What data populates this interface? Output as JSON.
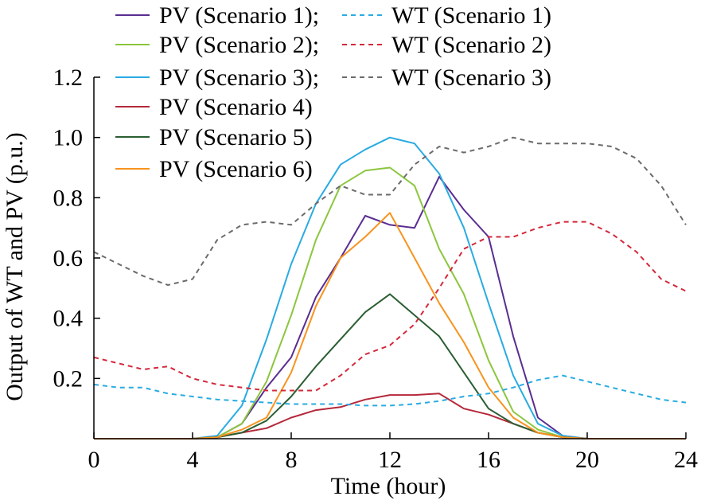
{
  "chart_data": {
    "type": "line",
    "xlabel": "Time (hour)",
    "ylabel": "Output of WT and PV (p.u.)",
    "xlim": [
      0,
      24
    ],
    "ylim": [
      0,
      1.2
    ],
    "xticks": [
      0,
      4,
      8,
      12,
      16,
      20,
      24
    ],
    "yticks": [
      0.2,
      0.4,
      0.6,
      0.8,
      1.0,
      1.2
    ],
    "xtick_labels": [
      "0",
      "4",
      "8",
      "12",
      "16",
      "20",
      "24"
    ],
    "ytick_labels": [
      "0.2",
      "0.4",
      "0.6",
      "0.8",
      "1.0",
      "1.2"
    ],
    "grid": false,
    "legend_position": "top",
    "x": [
      0,
      1,
      2,
      3,
      4,
      5,
      6,
      7,
      8,
      9,
      10,
      11,
      12,
      13,
      14,
      15,
      16,
      17,
      18,
      19,
      20,
      21,
      22,
      23,
      24
    ],
    "series": [
      {
        "name": "PV (Scenario 1);",
        "color": "#5a2d91",
        "style": "solid",
        "values": [
          0,
          0,
          0,
          0,
          0,
          0.005,
          0.05,
          0.17,
          0.27,
          0.47,
          0.6,
          0.74,
          0.71,
          0.7,
          0.87,
          0.76,
          0.67,
          0.34,
          0.07,
          0.01,
          0,
          0,
          0,
          0,
          0
        ]
      },
      {
        "name": "PV (Scenario 2);",
        "color": "#8cc63f",
        "style": "solid",
        "values": [
          0,
          0,
          0,
          0,
          0,
          0.005,
          0.05,
          0.19,
          0.41,
          0.66,
          0.84,
          0.89,
          0.9,
          0.84,
          0.63,
          0.48,
          0.26,
          0.09,
          0.03,
          0.005,
          0,
          0,
          0,
          0,
          0
        ]
      },
      {
        "name": "PV (Scenario 3);",
        "color": "#29abe2",
        "style": "solid",
        "values": [
          0,
          0,
          0,
          0,
          0,
          0.01,
          0.11,
          0.33,
          0.58,
          0.78,
          0.91,
          0.96,
          1.0,
          0.98,
          0.88,
          0.7,
          0.45,
          0.21,
          0.05,
          0.01,
          0,
          0,
          0,
          0,
          0
        ]
      },
      {
        "name": "PV (Scenario 4)",
        "color": "#b5283a",
        "style": "solid",
        "values": [
          0,
          0,
          0,
          0,
          0,
          0.005,
          0.02,
          0.035,
          0.07,
          0.095,
          0.105,
          0.13,
          0.145,
          0.145,
          0.15,
          0.1,
          0.08,
          0.05,
          0.02,
          0.005,
          0,
          0,
          0,
          0,
          0
        ]
      },
      {
        "name": "PV (Scenario 5)",
        "color": "#2a5e32",
        "style": "solid",
        "values": [
          0,
          0,
          0,
          0,
          0,
          0.005,
          0.02,
          0.06,
          0.14,
          0.24,
          0.33,
          0.42,
          0.48,
          0.41,
          0.34,
          0.22,
          0.1,
          0.05,
          0.02,
          0.005,
          0,
          0,
          0,
          0,
          0
        ]
      },
      {
        "name": "PV (Scenario 6)",
        "color": "#f7931e",
        "style": "solid",
        "values": [
          0,
          0,
          0,
          0,
          0,
          0.005,
          0.03,
          0.07,
          0.22,
          0.44,
          0.6,
          0.67,
          0.75,
          0.6,
          0.45,
          0.32,
          0.17,
          0.07,
          0.02,
          0.005,
          0,
          0,
          0,
          0,
          0
        ]
      },
      {
        "name": "WT (Scenario 1)",
        "color": "#29abe2",
        "style": "dashed",
        "values": [
          0.18,
          0.17,
          0.17,
          0.15,
          0.14,
          0.13,
          0.125,
          0.12,
          0.115,
          0.115,
          0.115,
          0.11,
          0.11,
          0.115,
          0.125,
          0.14,
          0.15,
          0.17,
          0.195,
          0.21,
          0.19,
          0.17,
          0.15,
          0.13,
          0.12
        ]
      },
      {
        "name": "WT (Scenario 2)",
        "color": "#d4283a",
        "style": "dashed",
        "values": [
          0.27,
          0.25,
          0.23,
          0.24,
          0.2,
          0.18,
          0.17,
          0.16,
          0.16,
          0.16,
          0.21,
          0.28,
          0.31,
          0.38,
          0.5,
          0.63,
          0.67,
          0.67,
          0.7,
          0.72,
          0.72,
          0.68,
          0.62,
          0.53,
          0.49
        ]
      },
      {
        "name": "WT (Scenario 3)",
        "color": "#6b6b6b",
        "style": "dashed",
        "values": [
          0.62,
          0.58,
          0.54,
          0.51,
          0.53,
          0.66,
          0.71,
          0.72,
          0.71,
          0.78,
          0.84,
          0.81,
          0.81,
          0.91,
          0.97,
          0.95,
          0.97,
          1.0,
          0.98,
          0.98,
          0.98,
          0.97,
          0.93,
          0.84,
          0.71
        ]
      }
    ]
  }
}
